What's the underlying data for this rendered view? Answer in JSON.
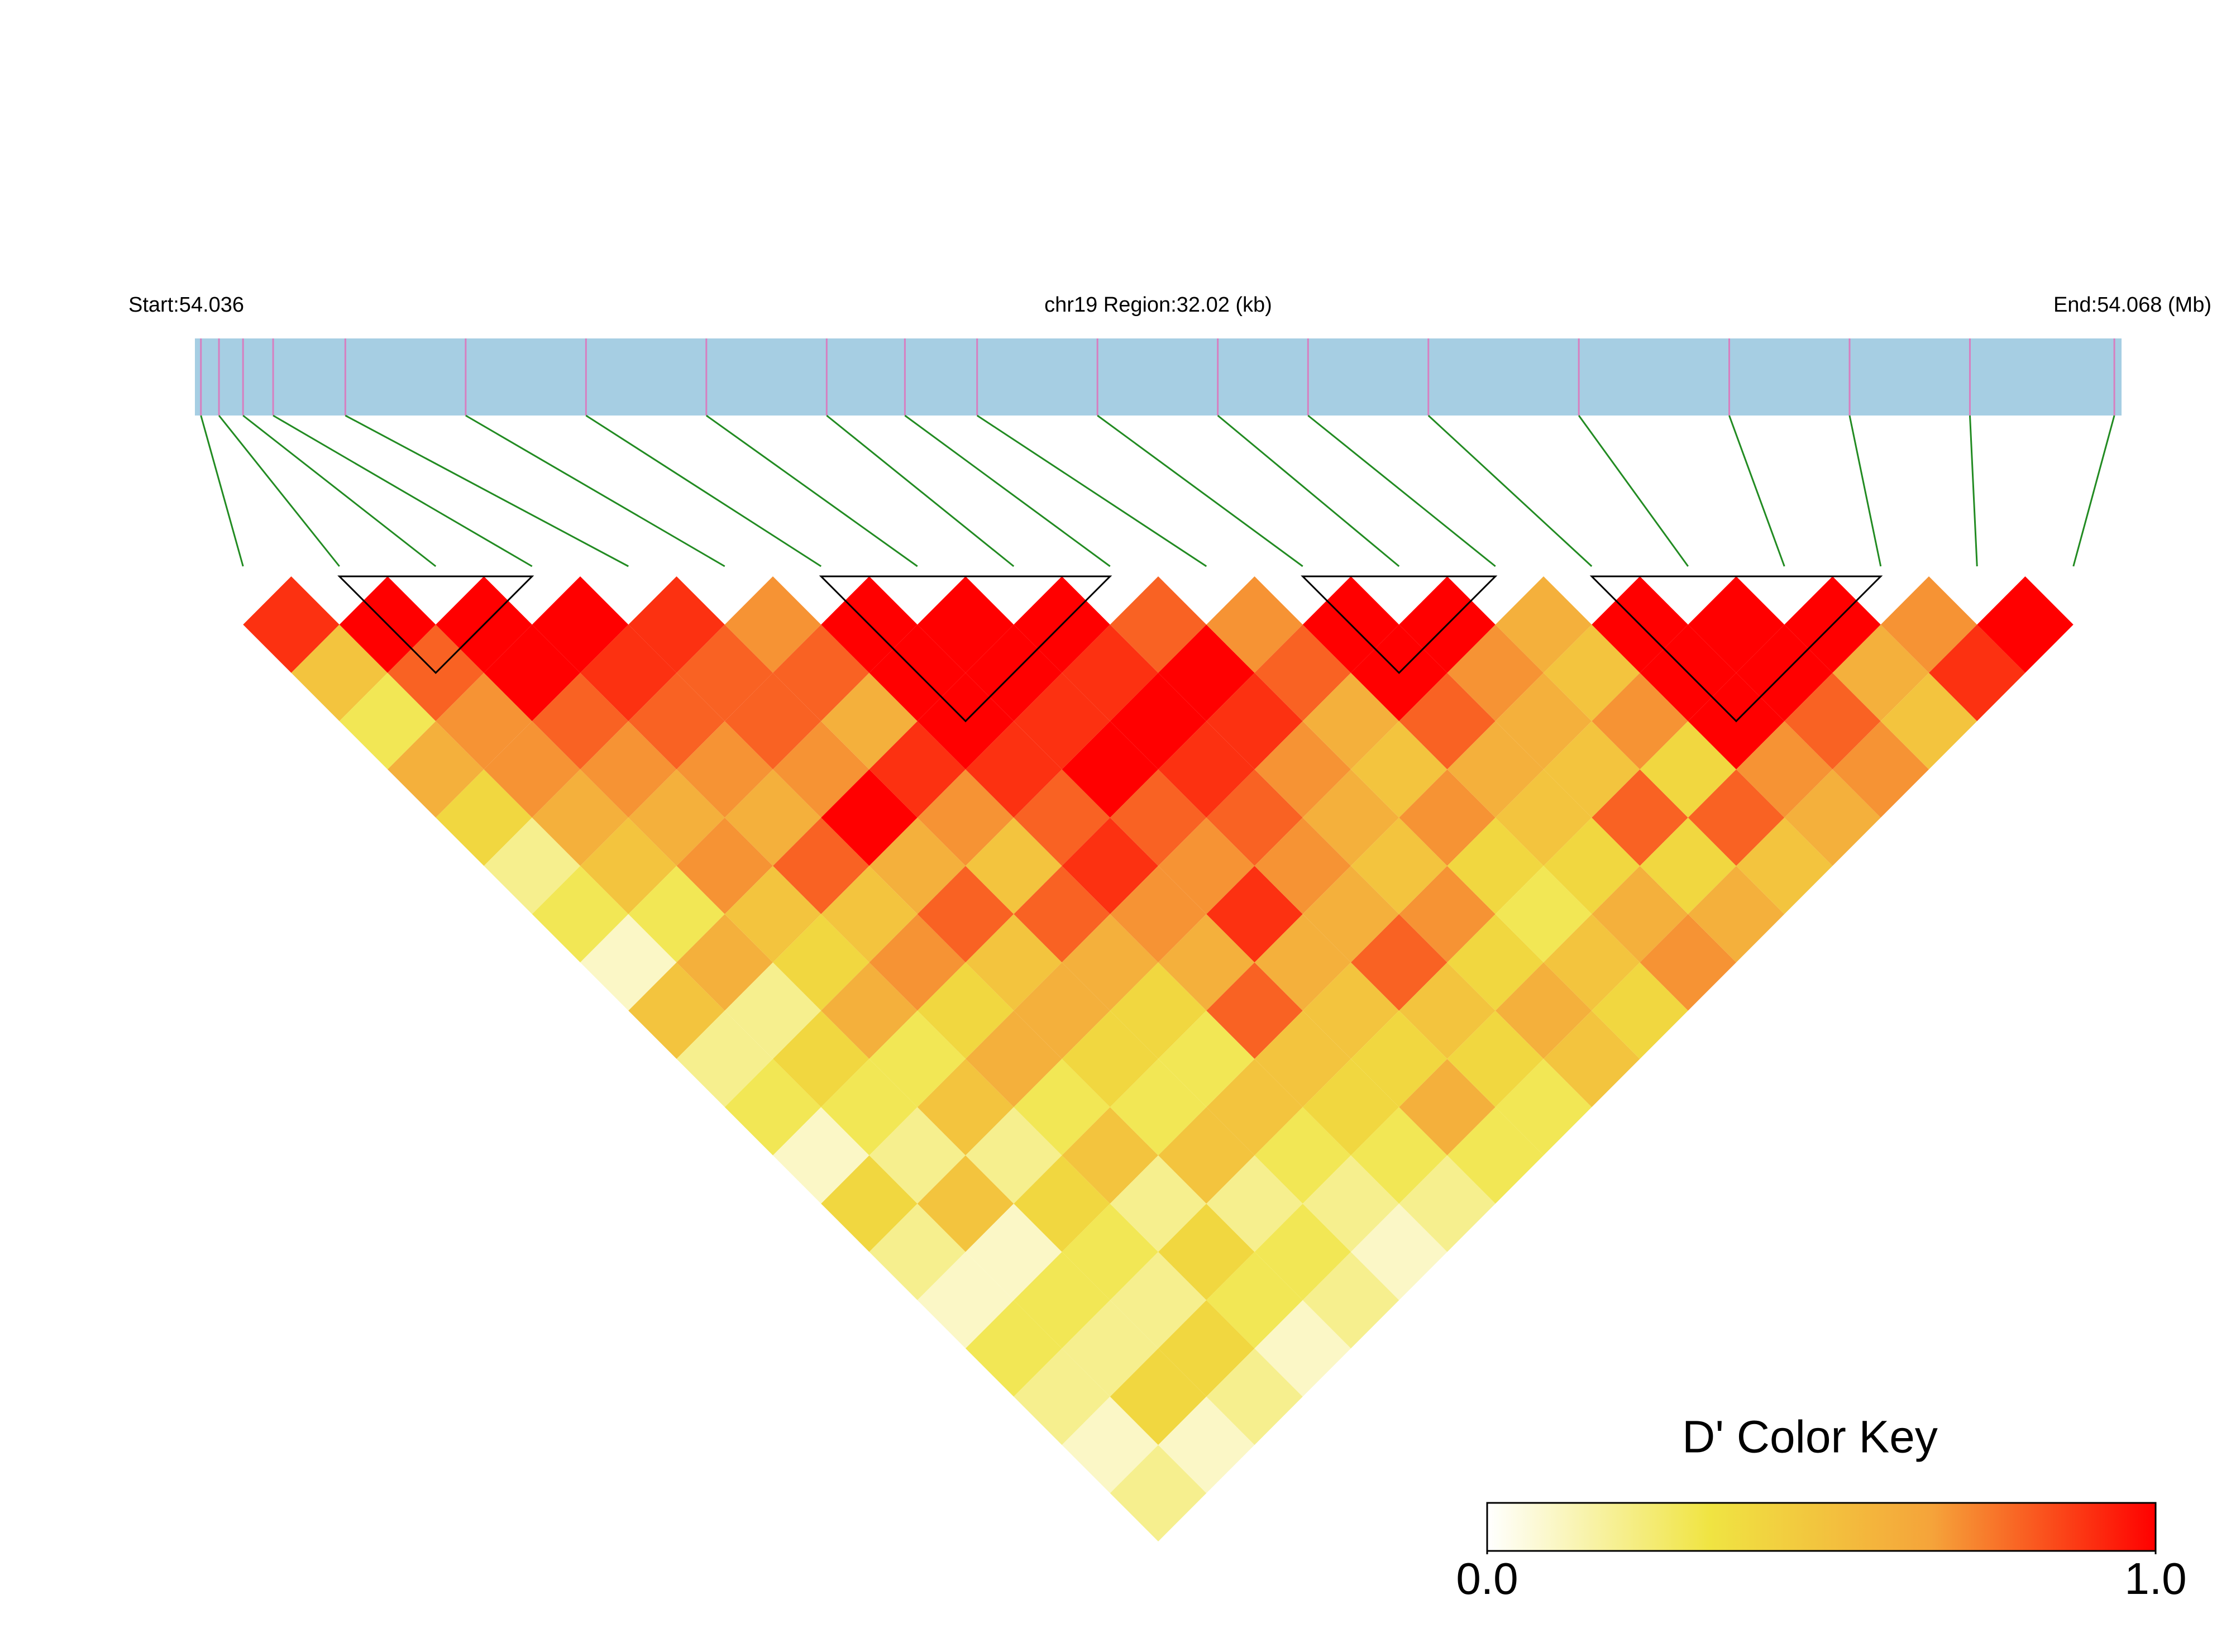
{
  "chart_data": {
    "type": "ld-heatmap",
    "start_label": "Start:54.036",
    "region_label": "chr19 Region:32.02 (kb)",
    "end_label": "End:54.068 (Mb)",
    "xlim": [
      0,
      32.02
    ],
    "positions": [
      0.1,
      0.4,
      0.8,
      1.3,
      2.5,
      4.5,
      6.5,
      8.5,
      10.5,
      11.8,
      13,
      15,
      17,
      18.5,
      20.5,
      23,
      25.5,
      27.5,
      29.5,
      31.9
    ],
    "ld": [
      [
        0.9,
        0.5,
        0.3,
        0.6,
        0.4,
        0.2,
        0.3,
        0.1,
        0.5,
        0.2,
        0.3,
        0.1,
        0.4,
        0.2,
        0.1,
        0.3,
        0.2,
        0.1,
        0.2
      ],
      [
        1,
        0.8,
        0.7,
        0.7,
        0.6,
        0.5,
        0.3,
        0.6,
        0.2,
        0.4,
        0.3,
        0.2,
        0.5,
        0.1,
        0.3,
        0.2,
        0.4,
        0.1
      ],
      [
        1,
        1,
        0.8,
        0.7,
        0.6,
        0.7,
        0.5,
        0.4,
        0.6,
        0.3,
        0.5,
        0.2,
        0.4,
        0.3,
        0.2,
        0.4,
        0.2
      ],
      [
        1,
        0.9,
        0.8,
        0.7,
        0.6,
        0.8,
        0.5,
        0.7,
        0.4,
        0.6,
        0.3,
        0.5,
        0.2,
        0.4,
        0.3,
        0.1
      ],
      [
        0.9,
        0.8,
        0.8,
        0.7,
        1,
        0.6,
        0.8,
        0.5,
        0.6,
        0.4,
        0.3,
        0.5,
        0.2,
        0.3,
        0.2
      ],
      [
        0.7,
        0.8,
        0.6,
        0.9,
        0.7,
        0.5,
        0.8,
        0.6,
        0.4,
        0.3,
        0.5,
        0.3,
        0.2,
        0.1
      ],
      [
        1,
        1,
        1,
        0.9,
        0.8,
        0.9,
        0.7,
        0.6,
        0.8,
        0.5,
        0.4,
        0.3,
        0.2
      ],
      [
        1,
        1,
        0.9,
        1,
        0.8,
        0.7,
        0.9,
        0.6,
        0.5,
        0.4,
        0.6,
        0.3
      ],
      [
        1,
        0.9,
        1,
        0.9,
        0.8,
        0.7,
        0.6,
        0.8,
        0.5,
        0.4,
        0.3
      ],
      [
        0.8,
        1,
        0.9,
        0.7,
        0.6,
        0.5,
        0.7,
        0.4,
        0.6,
        0.5
      ],
      [
        0.7,
        0.8,
        0.6,
        0.5,
        0.7,
        0.4,
        0.3,
        0.5,
        0.4
      ],
      [
        1,
        1,
        0.8,
        0.6,
        0.5,
        0.4,
        0.6,
        0.7
      ],
      [
        1,
        0.7,
        0.6,
        0.5,
        0.8,
        0.4,
        0.6
      ],
      [
        0.6,
        0.5,
        0.7,
        0.4,
        0.8,
        0.5
      ],
      [
        1,
        1,
        1,
        0.7,
        0.6
      ],
      [
        1,
        1,
        0.8,
        0.7
      ],
      [
        1,
        0.6,
        0.5
      ],
      [
        0.7,
        0.9
      ],
      [
        1
      ]
    ],
    "blocks": [
      [
        1,
        3
      ],
      [
        6,
        9
      ],
      [
        11,
        13
      ],
      [
        14,
        17
      ]
    ],
    "colors": [
      "#ffffff",
      "#f0e442",
      "#f5a33a",
      "#ff0000"
    ],
    "bar_color": "#a6cee3",
    "link_color": "#228b22",
    "key_title": "D' Color Key",
    "key_ticks": [
      {
        "value": 0,
        "label": "0.0"
      },
      {
        "value": 1,
        "label": "1.0"
      }
    ]
  }
}
